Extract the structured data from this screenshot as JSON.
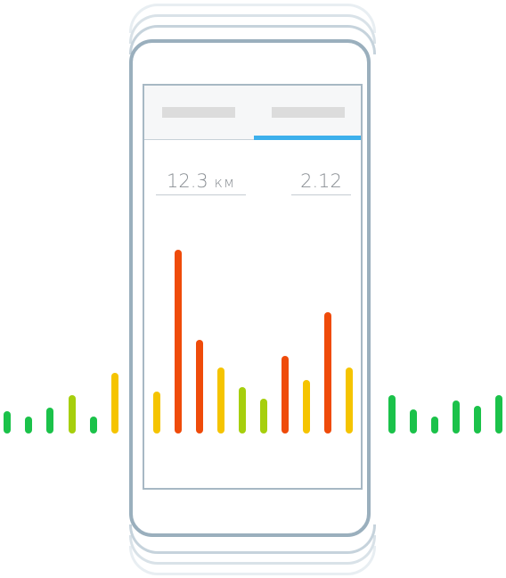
{
  "device": {
    "frame_color": "#9aafbd",
    "echo_colors": [
      "#e8eef2",
      "#d9e2e8",
      "#c6d3dc"
    ]
  },
  "tabs": [
    {
      "label": "",
      "active": false
    },
    {
      "label": "",
      "active": true
    }
  ],
  "accent_color": "#3db0ec",
  "stats": {
    "distance_value": "12.3",
    "distance_unit": "км",
    "second_value": "2.12"
  },
  "chart_data": {
    "type": "bar",
    "title": "",
    "inner_values": [
      0.23,
      1.0,
      0.51,
      0.36,
      0.25,
      0.19,
      0.42,
      0.29,
      0.66,
      0.36
    ],
    "inner_colors": [
      "#f5c400",
      "#ef4b0a",
      "#ef4b0a",
      "#f5c400",
      "#a6cf0d",
      "#a6cf0d",
      "#ef4b0a",
      "#f5c400",
      "#ef4b0a",
      "#f5c400"
    ],
    "left_values": [
      0.12,
      0.09,
      0.14,
      0.21,
      0.09,
      0.33
    ],
    "left_colors": [
      "#1bc24a",
      "#1bc24a",
      "#1bc24a",
      "#a6cf0d",
      "#1bc24a",
      "#f5c400"
    ],
    "right_values": [
      0.21,
      0.13,
      0.09,
      0.18,
      0.15,
      0.21
    ],
    "right_colors": [
      "#1bc24a",
      "#1bc24a",
      "#1bc24a",
      "#1bc24a",
      "#1bc24a",
      "#1bc24a"
    ]
  }
}
